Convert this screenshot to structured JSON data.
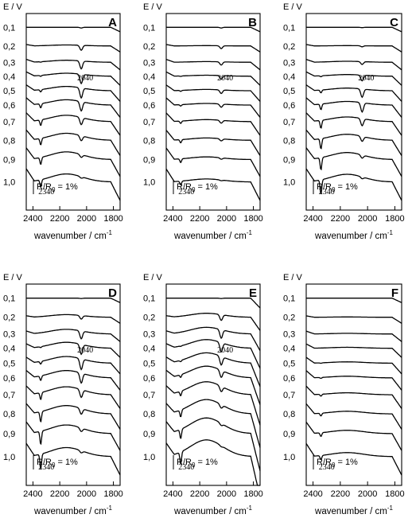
{
  "chart_data": {
    "type": "line",
    "x_axis_title": "wavenumber / cm",
    "x_axis_title_exponent": "-1",
    "x_ticks": [
      2400,
      2200,
      2000,
      1800
    ],
    "xlim": [
      2450,
      1750
    ],
    "y_axis_title": "E / V",
    "scale_bar": {
      "label": "R/R",
      "subscript": "0",
      "value": "= 1%"
    },
    "grid": false,
    "panels": [
      {
        "label": "A",
        "potentials": [
          "0,1",
          "0,2",
          "0,3",
          "0,4",
          "0,5",
          "0,6",
          "0,7",
          "0,8",
          "0,9",
          "1,0"
        ],
        "annotations": [
          "2040",
          "2340"
        ],
        "co_band_depth": [
          0.2,
          1.4,
          2.2,
          2.6,
          2.8,
          2.6,
          2.0,
          1.4,
          0.8,
          0.4
        ],
        "co2_band_depth": [
          0,
          0,
          0.1,
          0.2,
          0.5,
          0.9,
          1.2,
          1.4,
          1.5,
          1.5
        ],
        "broad_band_height": [
          0,
          0.3,
          0.6,
          0.9,
          1.3,
          1.6,
          1.9,
          2.1,
          2.3,
          2.4
        ]
      },
      {
        "label": "B",
        "potentials": [
          "0,1",
          "0,2",
          "0,3",
          "0,4",
          "0,5",
          "0,6",
          "0,7",
          "0,8",
          "0,9",
          "1,0"
        ],
        "annotations": [
          "2040",
          "2340"
        ],
        "co_band_depth": [
          0.2,
          0.8,
          0.9,
          1.0,
          1.0,
          0.9,
          0.8,
          0.6,
          0.4,
          0.2
        ],
        "co2_band_depth": [
          0,
          0,
          0,
          0.1,
          0.2,
          0.3,
          0.5,
          0.7,
          0.8,
          0.8
        ],
        "broad_band_height": [
          0,
          0.1,
          0.2,
          0.3,
          0.4,
          0.5,
          0.6,
          0.7,
          0.8,
          0.9
        ]
      },
      {
        "label": "C",
        "potentials": [
          "0,1",
          "0,2",
          "0,3",
          "0,4",
          "0,5",
          "0,6",
          "0,7",
          "0,8",
          "0,9",
          "1,0"
        ],
        "annotations": [
          "2040",
          "2340"
        ],
        "co_band_depth": [
          0.1,
          0.3,
          0.8,
          1.6,
          2.3,
          2.6,
          2.0,
          1.4,
          0.9,
          0.5
        ],
        "co2_band_depth": [
          0,
          0,
          0,
          0.2,
          0.6,
          1.2,
          1.7,
          2.2,
          2.6,
          3.0
        ],
        "broad_band_height": [
          0,
          0.1,
          0.3,
          0.5,
          0.8,
          1.1,
          1.4,
          1.8,
          2.1,
          2.3
        ]
      },
      {
        "label": "D",
        "potentials": [
          "0,1",
          "0,2",
          "0,3",
          "0,4",
          "0,5",
          "0,6",
          "0,7",
          "0,8",
          "0,9",
          "1,0"
        ],
        "annotations": [
          "2040",
          "2340"
        ],
        "co_band_depth": [
          0.1,
          1.0,
          2.2,
          2.8,
          3.0,
          2.8,
          2.2,
          1.6,
          1.0,
          0.6
        ],
        "co2_band_depth": [
          0,
          0,
          0,
          0.2,
          0.6,
          1.0,
          1.5,
          2.2,
          2.8,
          3.2
        ],
        "broad_band_height": [
          0,
          0.8,
          1.4,
          1.8,
          2.0,
          2.2,
          2.4,
          2.5,
          2.6,
          2.7
        ]
      },
      {
        "label": "E",
        "potentials": [
          "0,1",
          "0,2",
          "0,3",
          "0,4",
          "0,5",
          "0,6",
          "0,7",
          "0,8",
          "0,9",
          "1,0"
        ],
        "annotations": [
          "2040",
          "2340"
        ],
        "co_band_depth": [
          0.1,
          1.6,
          2.4,
          2.6,
          2.4,
          2.0,
          1.5,
          1.0,
          0.6,
          0.3
        ],
        "co2_band_depth": [
          0,
          0,
          0,
          0.1,
          0.3,
          0.6,
          1.0,
          1.5,
          2.0,
          2.6
        ],
        "broad_band_height": [
          0,
          1.2,
          2.0,
          2.6,
          3.1,
          3.5,
          3.9,
          4.3,
          4.7,
          5.0
        ]
      },
      {
        "label": "F",
        "potentials": [
          "0,1",
          "0,2",
          "0,3",
          "0,4",
          "0,5",
          "0,6",
          "0,7",
          "0,8",
          "0,9",
          "1,0"
        ],
        "annotations": [
          "2340"
        ],
        "co_band_depth": [
          0,
          0,
          0,
          0,
          0,
          0,
          0,
          0,
          0,
          0
        ],
        "co2_band_depth": [
          0,
          0,
          0,
          0,
          0.1,
          0.2,
          0.4,
          0.6,
          0.8,
          0.9
        ],
        "broad_band_height": [
          0,
          0.1,
          0.2,
          0.3,
          0.4,
          0.5,
          0.6,
          0.8,
          1.0,
          1.2
        ]
      }
    ]
  }
}
